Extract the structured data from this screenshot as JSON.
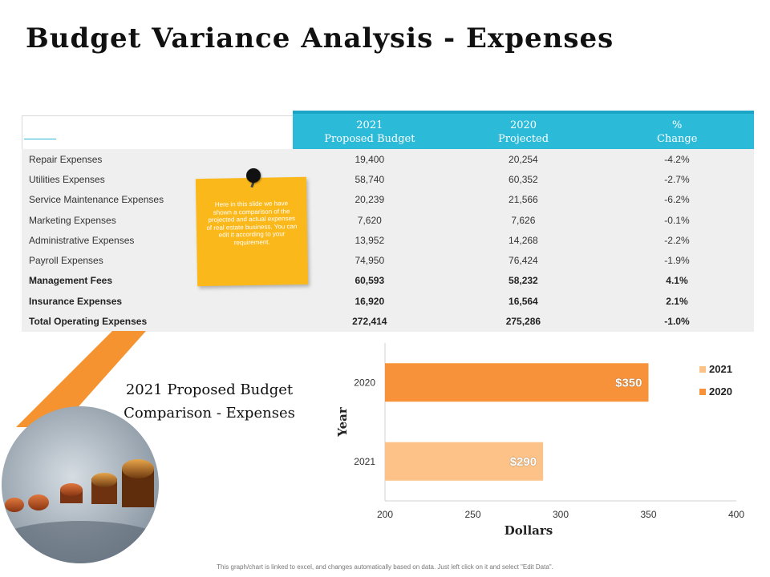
{
  "page": {
    "title": "Budget Variance Analysis - Expenses",
    "subtitle_line1": "2021 Proposed Budget",
    "subtitle_line2": "Comparison - Expenses",
    "footer": "This graph/chart is linked to excel, and changes automatically based on data. Just left click on it and select \"Edit Data\"."
  },
  "note": {
    "text": "Here in this slide we have shown a comparison of the projected and actual expenses of real estate business. You can edit it according to your requirement."
  },
  "table": {
    "headers": [
      {
        "line1": "2021",
        "line2": "Proposed Budget"
      },
      {
        "line1": "2020",
        "line2": "Projected"
      },
      {
        "line1": "%",
        "line2": "Change"
      }
    ],
    "rows": [
      {
        "label": "Repair Expenses",
        "budget": "19,400",
        "projected": "20,254",
        "change": "-4.2%",
        "bold": false
      },
      {
        "label": "Utilities Expenses",
        "budget": "58,740",
        "projected": "60,352",
        "change": "-2.7%",
        "bold": false
      },
      {
        "label": "Service Maintenance Expenses",
        "budget": "20,239",
        "projected": "21,566",
        "change": "-6.2%",
        "bold": false
      },
      {
        "label": "Marketing Expenses",
        "budget": "7,620",
        "projected": "7,626",
        "change": "-0.1%",
        "bold": false
      },
      {
        "label": "Administrative Expenses",
        "budget": "13,952",
        "projected": "14,268",
        "change": "-2.2%",
        "bold": false
      },
      {
        "label": "Payroll Expenses",
        "budget": "74,950",
        "projected": "76,424",
        "change": "-1.9%",
        "bold": false
      },
      {
        "label": "Management Fees",
        "budget": "60,593",
        "projected": "58,232",
        "change": "4.1%",
        "bold": true
      },
      {
        "label": "Insurance Expenses",
        "budget": "16,920",
        "projected": "16,564",
        "change": "2.1%",
        "bold": true
      },
      {
        "label": "Total Operating Expenses",
        "budget": "272,414",
        "projected": "275,286",
        "change": "-1.0%",
        "bold": true
      }
    ]
  },
  "chart_data": {
    "type": "bar",
    "orientation": "horizontal",
    "categories": [
      "2020",
      "2021"
    ],
    "values": [
      350,
      290
    ],
    "data_labels": [
      "$350",
      "$290"
    ],
    "colors": [
      "#f7923a",
      "#fcc287"
    ],
    "xlabel": "Dollars",
    "ylabel": "Year",
    "xlim": [
      200,
      400
    ],
    "xticks": [
      "200",
      "250",
      "300",
      "350",
      "400"
    ],
    "legend": [
      {
        "name": "2021",
        "color": "#fcc287"
      },
      {
        "name": "2020",
        "color": "#f7923a"
      }
    ],
    "legend_position": "right",
    "grid": false
  }
}
